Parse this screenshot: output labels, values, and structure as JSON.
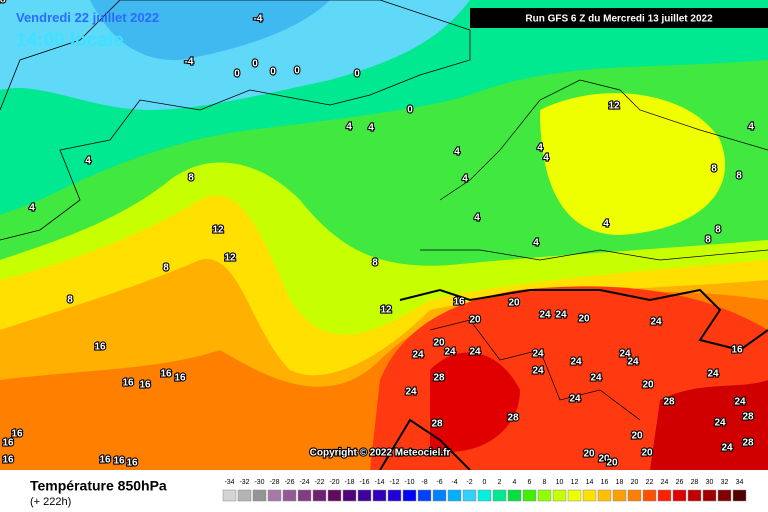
{
  "header": {
    "date": "Vendredi 22 juillet 2022",
    "time": "14:00 locale",
    "run": "Run GFS 6 Z du Mercredi 13 juillet 2022"
  },
  "copyright": "Copyright © 2022 Meteociel.fr",
  "footer": {
    "title": "Température 850hPa",
    "lead": "(+ 222h)"
  },
  "legend": {
    "values": [
      -34,
      -32,
      -30,
      -28,
      -26,
      -24,
      -22,
      -20,
      -18,
      -16,
      -14,
      -12,
      -10,
      -8,
      -6,
      -4,
      -2,
      0,
      2,
      4,
      6,
      8,
      10,
      12,
      14,
      16,
      18,
      20,
      22,
      24,
      26,
      28,
      30,
      32,
      34
    ],
    "colors": [
      "#d4d4d4",
      "#b4b4b4",
      "#949494",
      "#a878a8",
      "#945a94",
      "#823c82",
      "#702070",
      "#600a60",
      "#50007a",
      "#40009a",
      "#3000ba",
      "#2000da",
      "#0000ff",
      "#0040ff",
      "#0080ff",
      "#00b0ff",
      "#30d0ff",
      "#00f0e0",
      "#00e890",
      "#00e040",
      "#40f000",
      "#90ff00",
      "#c8ff00",
      "#f0ff00",
      "#ffe000",
      "#ffc000",
      "#ffa000",
      "#ff8000",
      "#ff5000",
      "#ff2000",
      "#e00000",
      "#c00000",
      "#a00000",
      "#800000",
      "#500000"
    ]
  },
  "map_labels": [
    -4,
    -4,
    0,
    0,
    0,
    0,
    0,
    0,
    4,
    4,
    4,
    4,
    4,
    4,
    4,
    4,
    4,
    4,
    4,
    4,
    8,
    8,
    8,
    8,
    8,
    8,
    8,
    8,
    12,
    12,
    12,
    12,
    16,
    16,
    16,
    16,
    16,
    16,
    16,
    16,
    16,
    16,
    16,
    16,
    16,
    20,
    20,
    20,
    20,
    20,
    20,
    20,
    20,
    20,
    20,
    24,
    24,
    24,
    24,
    24,
    24,
    24,
    24,
    24,
    24,
    24,
    24,
    24,
    24,
    24,
    24,
    24,
    24,
    28,
    28,
    28,
    28,
    28,
    28,
    28
  ]
}
